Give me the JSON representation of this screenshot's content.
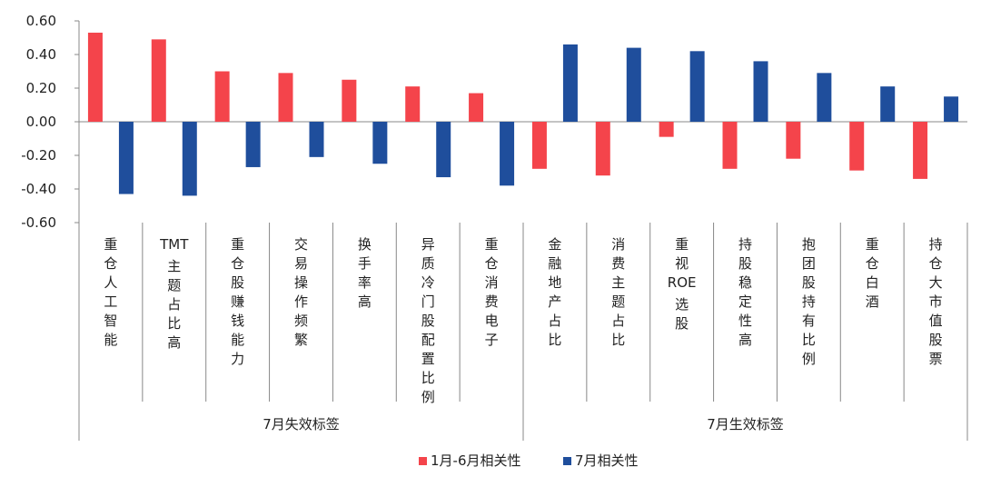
{
  "chart_data": {
    "type": "bar",
    "title": "",
    "xlabel": "",
    "ylabel": "",
    "ylim": [
      -0.6,
      0.6
    ],
    "yticks": [
      "0.60",
      "0.40",
      "0.20",
      "0.00",
      "-0.20",
      "-0.40",
      "-0.60"
    ],
    "categories": [
      "重仓人工智能",
      "TMT主题占比高",
      "重仓股赚钱能力",
      "交易操作频繁",
      "换手率高",
      "异质冷门股配置比例",
      "重仓消费电子",
      "金融地产占比",
      "消费主题占比",
      "重视ROE选股",
      "持股稳定性高",
      "抱团股持有比例",
      "重仓白酒",
      "持仓大市值股票"
    ],
    "groups": [
      {
        "label": "7月失效标签",
        "count": 7
      },
      {
        "label": "7月生效标签",
        "count": 7
      }
    ],
    "series": [
      {
        "name": "1月-6月相关性",
        "color": "#f4444b",
        "values": [
          0.53,
          0.49,
          0.3,
          0.29,
          0.25,
          0.21,
          0.17,
          -0.28,
          -0.32,
          -0.09,
          -0.28,
          -0.22,
          -0.29,
          -0.34
        ]
      },
      {
        "name": "7月相关性",
        "color": "#1f4e9c",
        "values": [
          -0.43,
          -0.44,
          -0.27,
          -0.21,
          -0.25,
          -0.33,
          -0.38,
          0.46,
          0.44,
          0.42,
          0.36,
          0.29,
          0.21,
          0.15
        ]
      }
    ],
    "legend_position": "bottom-center",
    "grid": false
  }
}
